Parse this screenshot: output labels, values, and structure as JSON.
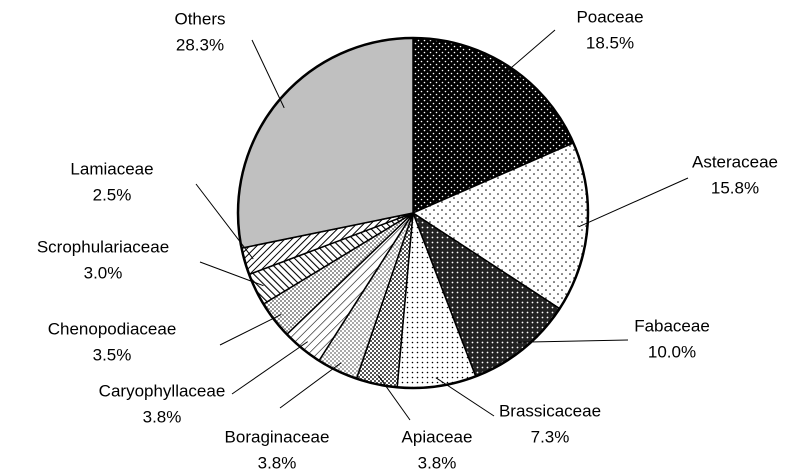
{
  "chart_data": {
    "type": "pie",
    "categories": [
      "Poaceae",
      "Asteraceae",
      "Fabaceae",
      "Brassicaceae",
      "Apiaceae",
      "Boraginaceae",
      "Caryophyllaceae",
      "Chenopodiaceae",
      "Scrophulariaceae",
      "Lamiaceae",
      "Others"
    ],
    "values": [
      18.5,
      15.8,
      10.0,
      7.3,
      3.8,
      3.8,
      3.8,
      3.5,
      3.0,
      2.5,
      28.3
    ],
    "value_labels": [
      "18.5%",
      "15.8%",
      "10.0%",
      "7.3%",
      "3.8%",
      "3.8%",
      "3.8%",
      "3.5%",
      "3.0%",
      "2.5%",
      "28.3%"
    ]
  }
}
